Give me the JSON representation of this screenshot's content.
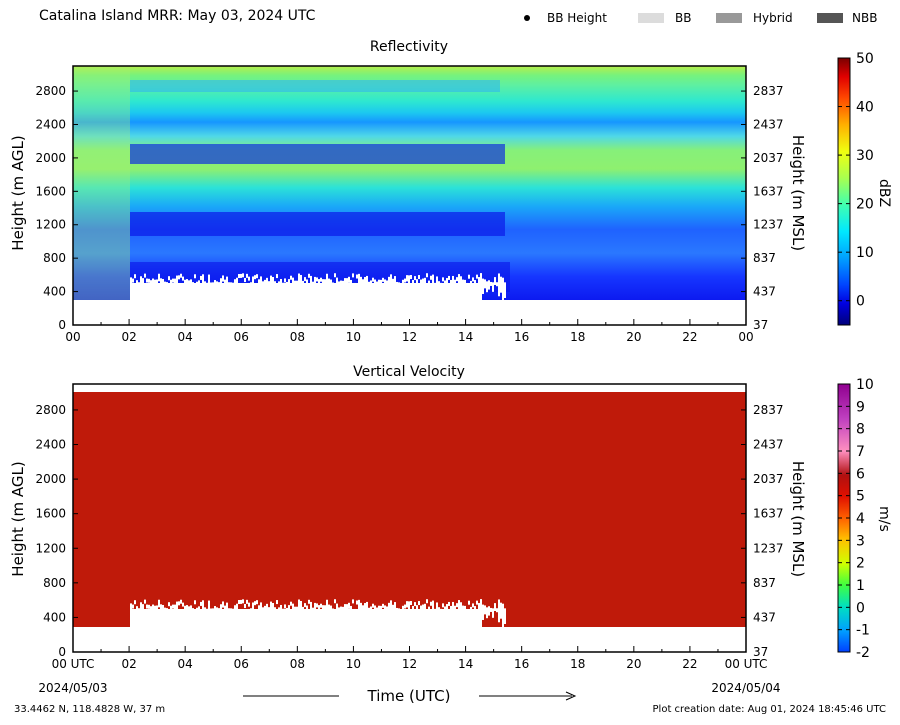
{
  "header": {
    "title": "Catalina Island MRR:  May 03, 2024 UTC",
    "legend": [
      {
        "label": "BB Height",
        "marker": "dot",
        "color": "#000000"
      },
      {
        "label": "BB",
        "marker": "swatch",
        "color": "#dcdcdc"
      },
      {
        "label": "Hybrid",
        "marker": "swatch",
        "color": "#999999"
      },
      {
        "label": "NBB",
        "marker": "swatch",
        "color": "#555555"
      }
    ]
  },
  "chart_data": [
    {
      "type": "heatmap",
      "title": "Reflectivity",
      "ylabel": "Height (m AGL)",
      "y2label": "Height (m MSL)",
      "x_ticks": [
        "00",
        "02",
        "04",
        "06",
        "08",
        "10",
        "12",
        "14",
        "16",
        "18",
        "20",
        "22",
        "00"
      ],
      "y_ticks": [
        0,
        400,
        800,
        1200,
        1600,
        2000,
        2400,
        2800
      ],
      "y2_ticks": [
        37,
        437,
        837,
        1237,
        1637,
        2037,
        2437,
        2837
      ],
      "ylim": [
        0,
        3100
      ],
      "colorbar": {
        "label": "dBZ",
        "range": [
          -5,
          50
        ],
        "ticks": [
          0,
          10,
          20,
          30,
          40,
          50
        ]
      }
    },
    {
      "type": "heatmap",
      "title": "Vertical Velocity",
      "ylabel": "Height (m AGL)",
      "y2label": "Height (m MSL)",
      "x_ticks": [
        "00 UTC",
        "02",
        "04",
        "06",
        "08",
        "10",
        "12",
        "14",
        "16",
        "18",
        "20",
        "22",
        "00 UTC"
      ],
      "y_ticks": [
        0,
        400,
        800,
        1200,
        1600,
        2000,
        2400,
        2800
      ],
      "y2_ticks": [
        37,
        437,
        837,
        1237,
        1637,
        2037,
        2437,
        2837
      ],
      "ylim": [
        0,
        3100
      ],
      "colorbar": {
        "label": "m/s",
        "range": [
          -2,
          10
        ],
        "ticks": [
          -2,
          -1,
          0,
          1,
          2,
          3,
          4,
          5,
          6,
          7,
          8,
          9,
          10
        ]
      }
    }
  ],
  "xaxis": {
    "label": "Time (UTC)",
    "start_date": "2024/05/03",
    "end_date": "2024/05/04"
  },
  "footer": {
    "location": "33.4462 N, 118.4828 W, 37 m",
    "creation": "Plot creation date: Aug 01, 2024 18:45:46 UTC"
  },
  "colors": {
    "vv_fill": "#bf1a0a"
  }
}
